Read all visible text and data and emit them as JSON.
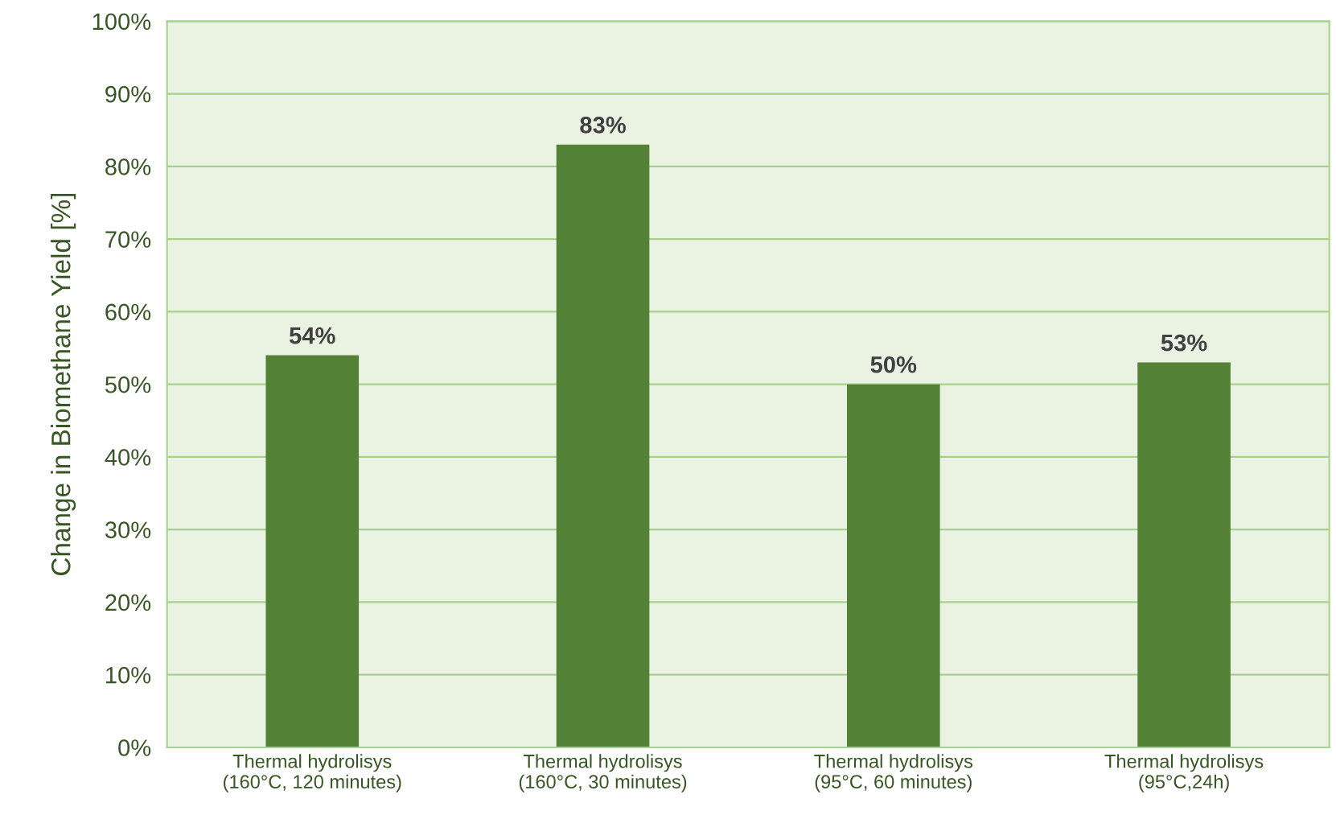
{
  "chart_data": {
    "type": "bar",
    "ylabel": "Change in Biomethane Yield [%]",
    "categories": [
      "Thermal hydrolisys\n(160°C, 120 minutes)",
      "Thermal hydrolisys\n(160°C, 30 minutes)",
      "Thermal hydrolisys\n(95°C, 60 minutes)",
      "Thermal hydrolisys\n(95°C,24h)"
    ],
    "values": [
      54,
      83,
      50,
      53
    ],
    "value_labels": [
      "54%",
      "83%",
      "50%",
      "53%"
    ],
    "color": "#538135",
    "ylim": [
      0,
      100
    ],
    "yticks": [
      {
        "value": 0,
        "label": "0%"
      },
      {
        "value": 10,
        "label": "10%"
      },
      {
        "value": 20,
        "label": "20%"
      },
      {
        "value": 30,
        "label": "30%"
      },
      {
        "value": 40,
        "label": "40%"
      },
      {
        "value": 50,
        "label": "50%"
      },
      {
        "value": 60,
        "label": "60%"
      },
      {
        "value": 70,
        "label": "70%"
      },
      {
        "value": 80,
        "label": "80%"
      },
      {
        "value": 90,
        "label": "90%"
      },
      {
        "value": 100,
        "label": "100%"
      }
    ],
    "grid": "y"
  }
}
